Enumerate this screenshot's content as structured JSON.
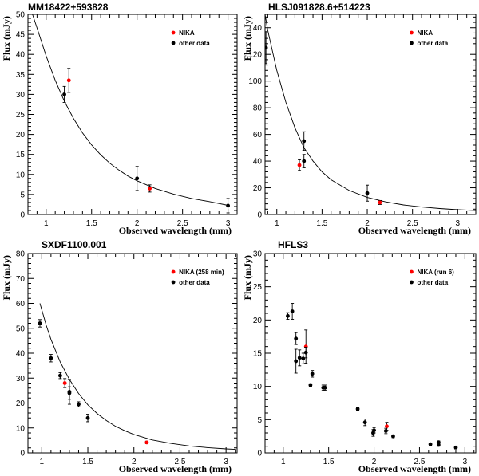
{
  "chart_data": [
    {
      "type": "scatter",
      "title": "MM18422+593828",
      "xlabel": "Observed wavelength (mm)",
      "ylabel": "Flux (mJy)",
      "xlim": [
        0.8,
        3.1
      ],
      "ylim": [
        0,
        50
      ],
      "xticks": [
        1,
        1.5,
        2,
        2.5,
        3
      ],
      "xtick_labels": [
        "1",
        "1.5",
        "2",
        "2.5",
        "3"
      ],
      "yticks": [
        0,
        5,
        10,
        15,
        20,
        25,
        30,
        35,
        40,
        45,
        50
      ],
      "ytick_labels": [
        "0",
        "5",
        "10",
        "15",
        "20",
        "25",
        "30",
        "35",
        "40",
        "45",
        "50"
      ],
      "legend": {
        "position": "top-right",
        "entries": [
          {
            "label": "NIKA",
            "color": "#ff0000"
          },
          {
            "label": "other data",
            "color": "#000000"
          }
        ]
      },
      "series": [
        {
          "name": "NIKA",
          "color": "#ff0000",
          "points": [
            {
              "x": 1.25,
              "y": 33.5,
              "err": 3
            },
            {
              "x": 2.14,
              "y": 6.5,
              "err": 0.9
            }
          ]
        },
        {
          "name": "other data",
          "color": "#000000",
          "points": [
            {
              "x": 1.2,
              "y": 30,
              "err": 2
            },
            {
              "x": 2.0,
              "y": 9,
              "err": 3
            },
            {
              "x": 3.0,
              "y": 2.2,
              "err": 1.8
            }
          ]
        }
      ],
      "model_curve": [
        {
          "x": 0.85,
          "y": 50
        },
        {
          "x": 0.9,
          "y": 46.6
        },
        {
          "x": 1.0,
          "y": 39.6
        },
        {
          "x": 1.1,
          "y": 33.5
        },
        {
          "x": 1.2,
          "y": 28.3
        },
        {
          "x": 1.3,
          "y": 24
        },
        {
          "x": 1.4,
          "y": 20.4
        },
        {
          "x": 1.5,
          "y": 17.4
        },
        {
          "x": 1.6,
          "y": 14.9
        },
        {
          "x": 1.7,
          "y": 12.8
        },
        {
          "x": 1.8,
          "y": 11.1
        },
        {
          "x": 1.9,
          "y": 9.6
        },
        {
          "x": 2.0,
          "y": 8.4
        },
        {
          "x": 2.2,
          "y": 6.5
        },
        {
          "x": 2.4,
          "y": 5.1
        },
        {
          "x": 2.6,
          "y": 4.0
        },
        {
          "x": 2.8,
          "y": 3.2
        },
        {
          "x": 3.0,
          "y": 2.3
        }
      ]
    },
    {
      "type": "scatter",
      "title": "HLSJ091828.6+514223",
      "xlabel": "Observed wavelength (mm)",
      "ylabel": "Flux (mJy)",
      "xlim": [
        0.87,
        3.2
      ],
      "ylim": [
        0,
        150
      ],
      "xticks": [
        1,
        1.5,
        2,
        2.5,
        3
      ],
      "xtick_labels": [
        "1",
        "1.5",
        "2",
        "2.5",
        "3"
      ],
      "yticks": [
        0,
        20,
        40,
        60,
        80,
        100,
        120,
        140
      ],
      "ytick_labels": [
        "0",
        "20",
        "40",
        "60",
        "80",
        "100",
        "120",
        "140"
      ],
      "legend": {
        "position": "top-right",
        "entries": [
          {
            "label": "NIKA",
            "color": "#ff0000"
          },
          {
            "label": "other data",
            "color": "#000000"
          }
        ]
      },
      "series": [
        {
          "name": "NIKA",
          "color": "#ff0000",
          "points": [
            {
              "x": 1.25,
              "y": 37,
              "err": 4
            },
            {
              "x": 2.14,
              "y": 9,
              "err": 1.5
            }
          ]
        },
        {
          "name": "other data",
          "color": "#000000",
          "points": [
            {
              "x": 0.88,
              "y": 125,
              "err": 12
            },
            {
              "x": 1.3,
              "y": 55,
              "err": 7
            },
            {
              "x": 1.3,
              "y": 40,
              "err": 5
            },
            {
              "x": 2.0,
              "y": 16,
              "err": 6
            }
          ]
        }
      ],
      "model_curve": [
        {
          "x": 0.87,
          "y": 150
        },
        {
          "x": 0.9,
          "y": 138
        },
        {
          "x": 1.0,
          "y": 108
        },
        {
          "x": 1.1,
          "y": 84
        },
        {
          "x": 1.2,
          "y": 65
        },
        {
          "x": 1.3,
          "y": 50
        },
        {
          "x": 1.4,
          "y": 40
        },
        {
          "x": 1.5,
          "y": 32
        },
        {
          "x": 1.6,
          "y": 26
        },
        {
          "x": 1.8,
          "y": 18
        },
        {
          "x": 2.0,
          "y": 12.8
        },
        {
          "x": 2.2,
          "y": 9.5
        },
        {
          "x": 2.4,
          "y": 7.2
        },
        {
          "x": 2.6,
          "y": 5.6
        },
        {
          "x": 2.8,
          "y": 4.5
        },
        {
          "x": 3.0,
          "y": 3.6
        },
        {
          "x": 3.2,
          "y": 3.0
        }
      ]
    },
    {
      "type": "scatter",
      "title": "SXDF1100.001",
      "xlabel": "Observed wavelength (mm)",
      "ylabel": "Flux (mJy)",
      "xlim": [
        0.85,
        3.12
      ],
      "ylim": [
        0,
        80
      ],
      "xticks": [
        1,
        1.5,
        2,
        2.5,
        3
      ],
      "xtick_labels": [
        "1",
        "1.5",
        "2",
        "2.5",
        "3"
      ],
      "yticks": [
        0,
        10,
        20,
        30,
        40,
        50,
        60,
        70,
        80
      ],
      "ytick_labels": [
        "0",
        "10",
        "20",
        "30",
        "40",
        "50",
        "60",
        "70",
        "80"
      ],
      "legend": {
        "position": "top-right",
        "entries": [
          {
            "label": "NIKA (258 min)",
            "color": "#ff0000"
          },
          {
            "label": "other data",
            "color": "#000000"
          }
        ]
      },
      "series": [
        {
          "name": "NIKA (258 min)",
          "color": "#ff0000",
          "points": [
            {
              "x": 1.25,
              "y": 28,
              "err": 1.8
            },
            {
              "x": 2.14,
              "y": 4.2,
              "err": 0.5
            }
          ]
        },
        {
          "name": "other data",
          "color": "#000000",
          "points": [
            {
              "x": 0.98,
              "y": 52,
              "err": 1.5
            },
            {
              "x": 1.1,
              "y": 38,
              "err": 1.5
            },
            {
              "x": 1.2,
              "y": 31,
              "err": 1.2
            },
            {
              "x": 1.3,
              "y": 24.5,
              "err": 5
            },
            {
              "x": 1.3,
              "y": 24,
              "err": 2.5
            },
            {
              "x": 1.4,
              "y": 19.5,
              "err": 1
            },
            {
              "x": 1.5,
              "y": 14,
              "err": 1.5
            }
          ]
        }
      ],
      "model_curve": [
        {
          "x": 0.98,
          "y": 60
        },
        {
          "x": 1.05,
          "y": 51
        },
        {
          "x": 1.1,
          "y": 45.5
        },
        {
          "x": 1.2,
          "y": 36.5
        },
        {
          "x": 1.3,
          "y": 29.5
        },
        {
          "x": 1.4,
          "y": 23.8
        },
        {
          "x": 1.5,
          "y": 19.3
        },
        {
          "x": 1.6,
          "y": 15.8
        },
        {
          "x": 1.7,
          "y": 13
        },
        {
          "x": 1.8,
          "y": 10.7
        },
        {
          "x": 1.9,
          "y": 8.9
        },
        {
          "x": 2.0,
          "y": 7.4
        },
        {
          "x": 2.2,
          "y": 5.2
        },
        {
          "x": 2.4,
          "y": 3.8
        },
        {
          "x": 2.6,
          "y": 2.8
        },
        {
          "x": 2.8,
          "y": 2.1
        },
        {
          "x": 3.0,
          "y": 1.6
        },
        {
          "x": 3.1,
          "y": 1.4
        }
      ]
    },
    {
      "type": "scatter",
      "title": "HFLS3",
      "xlabel": "Observed wavelength (mm)",
      "ylabel": "Flux (mJy)",
      "xlim": [
        0.8,
        3.12
      ],
      "ylim": [
        0,
        30
      ],
      "xticks": [
        1,
        1.5,
        2,
        2.5,
        3
      ],
      "xtick_labels": [
        "1",
        "1.5",
        "2",
        "2.5",
        "3"
      ],
      "yticks": [
        0,
        5,
        10,
        15,
        20,
        25,
        30
      ],
      "ytick_labels": [
        "0",
        "5",
        "10",
        "15",
        "20",
        "25",
        "30"
      ],
      "legend": {
        "position": "top-right",
        "entries": [
          {
            "label": "NIKA (run 6)",
            "color": "#ff0000"
          },
          {
            "label": "other data",
            "color": "#000000"
          }
        ]
      },
      "series": [
        {
          "name": "NIKA (run 6)",
          "color": "#ff0000",
          "points": [
            {
              "x": 1.25,
              "y": 16,
              "err": 2.5
            },
            {
              "x": 2.14,
              "y": 4,
              "err": 0.6
            }
          ]
        },
        {
          "name": "other data",
          "color": "#000000",
          "points": [
            {
              "x": 1.05,
              "y": 20.6,
              "err": 0.5
            },
            {
              "x": 1.1,
              "y": 21.3,
              "err": 1.2
            },
            {
              "x": 1.14,
              "y": 17.2,
              "err": 0.9
            },
            {
              "x": 1.14,
              "y": 13.8,
              "err": 1.8
            },
            {
              "x": 1.18,
              "y": 14.3,
              "err": 1.2
            },
            {
              "x": 1.22,
              "y": 14.2,
              "err": 0.8
            },
            {
              "x": 1.25,
              "y": 15.1,
              "err": 0.8
            },
            {
              "x": 1.3,
              "y": 10.2,
              "err": 0.2
            },
            {
              "x": 1.32,
              "y": 11.9,
              "err": 0.5
            },
            {
              "x": 1.44,
              "y": 9.8,
              "err": 0.4
            },
            {
              "x": 1.46,
              "y": 9.8,
              "err": 0.4
            },
            {
              "x": 1.82,
              "y": 6.6,
              "err": 0.2
            },
            {
              "x": 1.9,
              "y": 4.6,
              "err": 0.5
            },
            {
              "x": 1.99,
              "y": 3.0,
              "err": 0.5
            },
            {
              "x": 2.0,
              "y": 3.4,
              "err": 0.4
            },
            {
              "x": 2.13,
              "y": 3.3,
              "err": 0.4
            },
            {
              "x": 2.21,
              "y": 2.5,
              "err": 0.2
            },
            {
              "x": 2.62,
              "y": 1.3,
              "err": 0.2
            },
            {
              "x": 2.71,
              "y": 1.2,
              "err": 0.2
            },
            {
              "x": 2.71,
              "y": 1.6,
              "err": 0.2
            },
            {
              "x": 2.9,
              "y": 0.8,
              "err": 0.2
            }
          ]
        }
      ],
      "model_curve": []
    }
  ]
}
